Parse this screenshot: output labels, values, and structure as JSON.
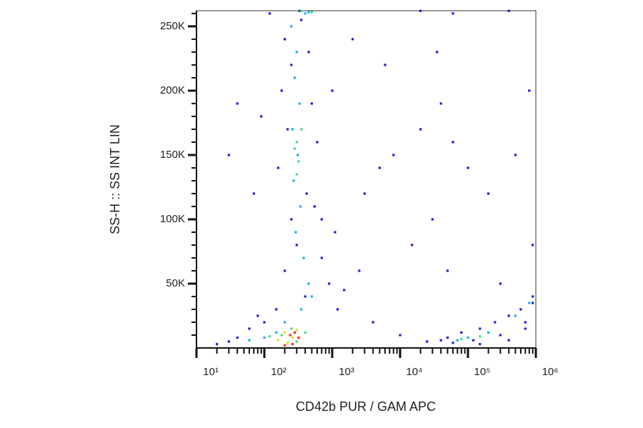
{
  "chart_data": {
    "type": "scatter",
    "xlabel": "CD42b PUR / GAM APC",
    "ylabel": "SS-H :: SS INT LIN",
    "xscale": "log",
    "xlim": [
      10,
      1000000
    ],
    "ylim": [
      0,
      262144
    ],
    "xticks": [
      {
        "value": 10,
        "label": "10¹"
      },
      {
        "value": 100,
        "label": "10²"
      },
      {
        "value": 1000,
        "label": "10³"
      },
      {
        "value": 10000,
        "label": "10⁴"
      },
      {
        "value": 100000,
        "label": "10⁵"
      },
      {
        "value": 1000000,
        "label": "10⁶"
      }
    ],
    "xminorticks": [
      20,
      30,
      40,
      50,
      60,
      70,
      80,
      90,
      200,
      300,
      400,
      500,
      600,
      700,
      800,
      900,
      2000,
      3000,
      4000,
      5000,
      6000,
      7000,
      8000,
      9000,
      20000,
      30000,
      40000,
      50000,
      60000,
      70000,
      80000,
      90000,
      200000,
      300000,
      400000,
      500000,
      600000,
      700000,
      800000,
      900000
    ],
    "yticks": [
      {
        "value": 50000,
        "label": "50K"
      },
      {
        "value": 100000,
        "label": "100K"
      },
      {
        "value": 150000,
        "label": "150K"
      },
      {
        "value": 200000,
        "label": "200K"
      },
      {
        "value": 250000,
        "label": "250K"
      }
    ],
    "yminorticks": [
      10000,
      20000,
      30000,
      40000,
      60000,
      70000,
      80000,
      90000,
      110000,
      120000,
      130000,
      140000,
      160000,
      170000,
      180000,
      190000,
      210000,
      220000,
      230000,
      240000,
      260000
    ],
    "series": [
      {
        "color": "#1c1ce0",
        "x": [
          200,
          350,
          250,
          450,
          180,
          500,
          220,
          600,
          160,
          420,
          250,
          550,
          300,
          700,
          200,
          900,
          400,
          1200,
          150,
          100,
          60,
          40,
          30,
          20,
          80,
          1500,
          2500,
          3000,
          5000,
          8000,
          20000,
          40000,
          60000,
          100000,
          200000,
          500000,
          800000,
          15000,
          30000,
          50000,
          300000,
          900000,
          4000,
          10000,
          25000,
          60000,
          150000,
          400000,
          700000,
          900000,
          90,
          70,
          40,
          30,
          120,
          330,
          20000,
          60000,
          400000,
          1000,
          2000,
          700,
          1100,
          35000,
          6000,
          50000,
          80000,
          150000,
          250000,
          400000,
          600000,
          900000,
          40000,
          120000,
          300000,
          700000
        ],
        "values": [
          240000,
          255000,
          220000,
          230000,
          200000,
          190000,
          170000,
          160000,
          140000,
          120000,
          100000,
          110000,
          80000,
          70000,
          60000,
          50000,
          40000,
          30000,
          30000,
          20000,
          15000,
          8000,
          5000,
          3000,
          25000,
          45000,
          60000,
          120000,
          140000,
          150000,
          170000,
          190000,
          160000,
          140000,
          120000,
          150000,
          200000,
          80000,
          100000,
          60000,
          50000,
          80000,
          20000,
          10000,
          5000,
          4000,
          3000,
          6000,
          20000,
          35000,
          180000,
          120000,
          190000,
          150000,
          260000,
          262000,
          262000,
          260000,
          262000,
          200000,
          240000,
          100000,
          90000,
          230000,
          220000,
          8000,
          12000,
          15000,
          20000,
          25000,
          30000,
          40000,
          6000,
          6000,
          10000,
          15000
        ]
      },
      {
        "color": "#1eaee6",
        "x": [
          250,
          300,
          280,
          330,
          260,
          310,
          270,
          340,
          290,
          380,
          450,
          500,
          350,
          200,
          150,
          100,
          60,
          400,
          450,
          100000,
          200000,
          500000,
          800000,
          70000
        ],
        "values": [
          250000,
          230000,
          210000,
          190000,
          170000,
          150000,
          130000,
          110000,
          90000,
          70000,
          50000,
          40000,
          30000,
          20000,
          12000,
          8000,
          6000,
          260000,
          261000,
          8000,
          12000,
          25000,
          35000,
          6000
        ]
      },
      {
        "color": "#3ee07a",
        "x": [
          300,
          320,
          280,
          350,
          300,
          250,
          180,
          120,
          400,
          300,
          500,
          350,
          80000,
          150000
        ],
        "values": [
          160000,
          145000,
          155000,
          170000,
          135000,
          15000,
          10000,
          9000,
          12000,
          5000,
          261000,
          262000,
          7000,
          9000
        ]
      },
      {
        "color": "#e8e020",
        "x": [
          200,
          260,
          160,
          300,
          220
        ],
        "values": [
          12000,
          8000,
          6000,
          14000,
          4000
        ]
      },
      {
        "color": "#e83010",
        "x": [
          240,
          280,
          200,
          260,
          320
        ],
        "values": [
          10000,
          12000,
          2000,
          3000,
          8000
        ]
      }
    ]
  }
}
